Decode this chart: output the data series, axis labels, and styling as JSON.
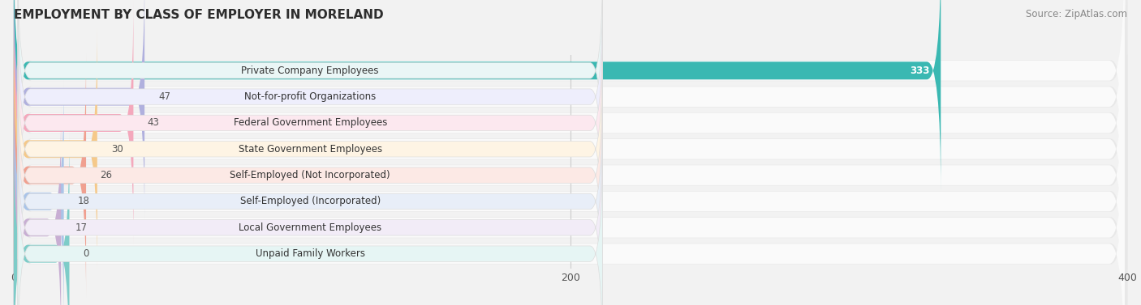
{
  "title": "EMPLOYMENT BY CLASS OF EMPLOYER IN MORELAND",
  "source": "Source: ZipAtlas.com",
  "categories": [
    "Private Company Employees",
    "Not-for-profit Organizations",
    "Federal Government Employees",
    "State Government Employees",
    "Self-Employed (Not Incorporated)",
    "Self-Employed (Incorporated)",
    "Local Government Employees",
    "Unpaid Family Workers"
  ],
  "values": [
    333,
    47,
    43,
    30,
    26,
    18,
    17,
    0
  ],
  "bar_colors": [
    "#3ab8b2",
    "#b0b0de",
    "#f4a8bc",
    "#f5c98a",
    "#f0a090",
    "#aac4e8",
    "#c8aed3",
    "#7dccc8"
  ],
  "label_bg_colors": [
    "#eaf6f6",
    "#eeeefc",
    "#fce8ef",
    "#fef4e4",
    "#fce9e5",
    "#e8eef8",
    "#f2ecf7",
    "#e6f5f4"
  ],
  "row_bg_color": "#f0f0f0",
  "row_fill_color": "#ffffff",
  "xlim": [
    0,
    400
  ],
  "xticks": [
    0,
    200,
    400
  ],
  "background_color": "#f2f2f2",
  "title_fontsize": 11,
  "source_fontsize": 8.5,
  "label_fontsize": 8.5,
  "value_fontsize": 8.5,
  "min_bar_display": 20
}
